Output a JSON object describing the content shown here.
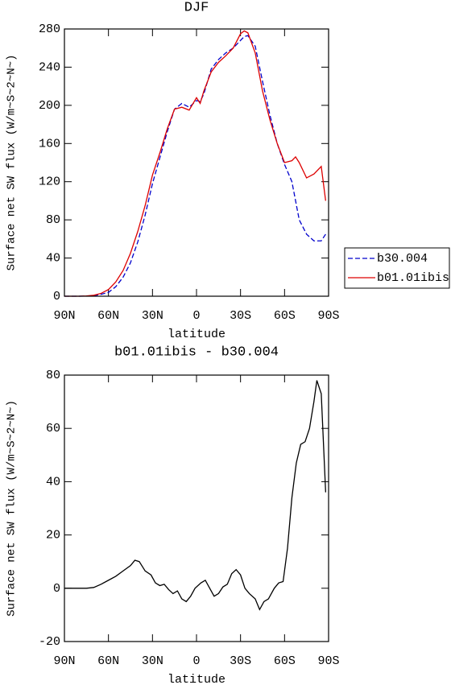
{
  "chart_data": [
    {
      "type": "line",
      "title": "DJF",
      "x_label": "latitude",
      "y_label": "Surface net SW flux (W/m~S~2~N~)",
      "x": [
        90,
        85,
        80,
        75,
        70,
        65,
        60,
        55,
        50,
        45,
        40,
        35,
        30,
        25,
        20,
        15,
        10,
        5,
        0,
        -2.5,
        -5,
        -10,
        -15,
        -20,
        -25,
        -30,
        -32.5,
        -35,
        -40,
        -45,
        -50,
        -55,
        -60,
        -65,
        -67.5,
        -70,
        -75,
        -80,
        -85,
        -88
      ],
      "series": [
        {
          "name": "b30.004",
          "color": "#0000cc",
          "dash": true,
          "values": [
            0,
            0,
            0,
            0.2,
            0.5,
            2,
            4,
            10,
            20,
            35,
            57,
            85,
            118,
            145,
            172,
            196,
            202,
            198,
            205,
            204,
            212,
            238,
            248,
            255,
            260,
            268,
            272,
            273,
            262,
            225,
            190,
            160,
            138,
            120,
            100,
            80,
            65,
            58,
            58,
            65
          ]
        },
        {
          "name": "b01.01ibis",
          "color": "#dd0000",
          "dash": false,
          "values": [
            0,
            0,
            0,
            0.3,
            1,
            3,
            7,
            15,
            27,
            45,
            68,
            95,
            127,
            150,
            175,
            196,
            198,
            195,
            208,
            202,
            215,
            235,
            245,
            252,
            260,
            275,
            278,
            276,
            255,
            215,
            185,
            160,
            140,
            142,
            146,
            140,
            124,
            128,
            136,
            100
          ]
        }
      ],
      "xlim": [
        90,
        -90
      ],
      "xticks": [
        {
          "value": 90,
          "label": "90N"
        },
        {
          "value": 60,
          "label": "60N"
        },
        {
          "value": 30,
          "label": "30N"
        },
        0,
        {
          "value": -30,
          "label": "30S"
        },
        {
          "value": -60,
          "label": "60S"
        },
        {
          "value": -90,
          "label": "90S"
        }
      ],
      "ylim": [
        0,
        280
      ],
      "yticks": [
        0,
        40,
        80,
        120,
        160,
        200,
        240,
        280
      ],
      "legend": "right"
    },
    {
      "type": "line",
      "title": "b01.01ibis - b30.004",
      "x_label": "latitude",
      "y_label": "Surface net SW flux (W/m~S~2~N~)",
      "x": [
        90,
        85,
        80,
        75,
        70,
        65,
        60,
        55,
        50,
        45,
        42,
        39,
        35,
        31,
        28,
        25,
        22,
        19,
        16,
        13,
        10,
        7,
        4,
        1,
        -3,
        -6,
        -9,
        -12,
        -15,
        -18,
        -21,
        -24,
        -27,
        -30,
        -33,
        -36,
        -40,
        -43,
        -46,
        -49,
        -53,
        -56,
        -59,
        -62,
        -65,
        -68,
        -71,
        -74,
        -77,
        -80,
        -82,
        -85,
        -88
      ],
      "series": [
        {
          "color": "#000000",
          "dash": false,
          "values": [
            0,
            0,
            0,
            0,
            0.3,
            1.5,
            3,
            4.5,
            6.5,
            8.5,
            10.5,
            10,
            6.5,
            5,
            2,
            1,
            1.5,
            -0.5,
            -2,
            -1,
            -4,
            -5,
            -3,
            0,
            2,
            3,
            0,
            -3,
            -2,
            0.5,
            1.5,
            5.5,
            7,
            5,
            0,
            -2,
            -4,
            -8,
            -5,
            -4,
            0,
            2,
            2.5,
            15,
            34,
            47,
            54,
            55,
            60,
            70,
            78,
            73,
            36
          ]
        }
      ],
      "xlim": [
        90,
        -90
      ],
      "xticks": [
        {
          "value": 90,
          "label": "90N"
        },
        {
          "value": 60,
          "label": "60N"
        },
        {
          "value": 30,
          "label": "30N"
        },
        0,
        {
          "value": -30,
          "label": "30S"
        },
        {
          "value": -60,
          "label": "60S"
        },
        {
          "value": -90,
          "label": "90S"
        }
      ],
      "ylim": [
        -20,
        80
      ],
      "yticks": [
        -20,
        0,
        20,
        40,
        60,
        80
      ]
    }
  ]
}
